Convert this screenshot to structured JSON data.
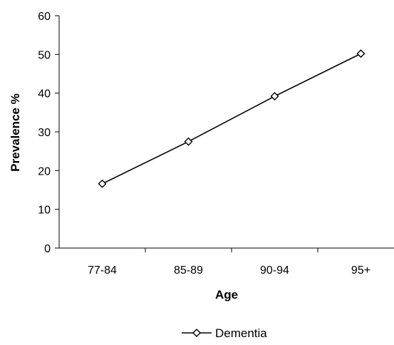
{
  "chart_data": {
    "type": "line",
    "categories": [
      "77-84",
      "85-89",
      "90-94",
      "95+"
    ],
    "series": [
      {
        "name": "Dementia",
        "values": [
          16.6,
          27.5,
          39.2,
          50.2
        ],
        "marker": "diamond-open",
        "color": "#000000"
      }
    ],
    "xlabel": "Age",
    "ylabel": "Prevalence %",
    "ylim": [
      0,
      60
    ],
    "yticks": [
      0,
      10,
      20,
      30,
      40,
      50,
      60
    ],
    "grid": false,
    "legend": "bottom"
  }
}
